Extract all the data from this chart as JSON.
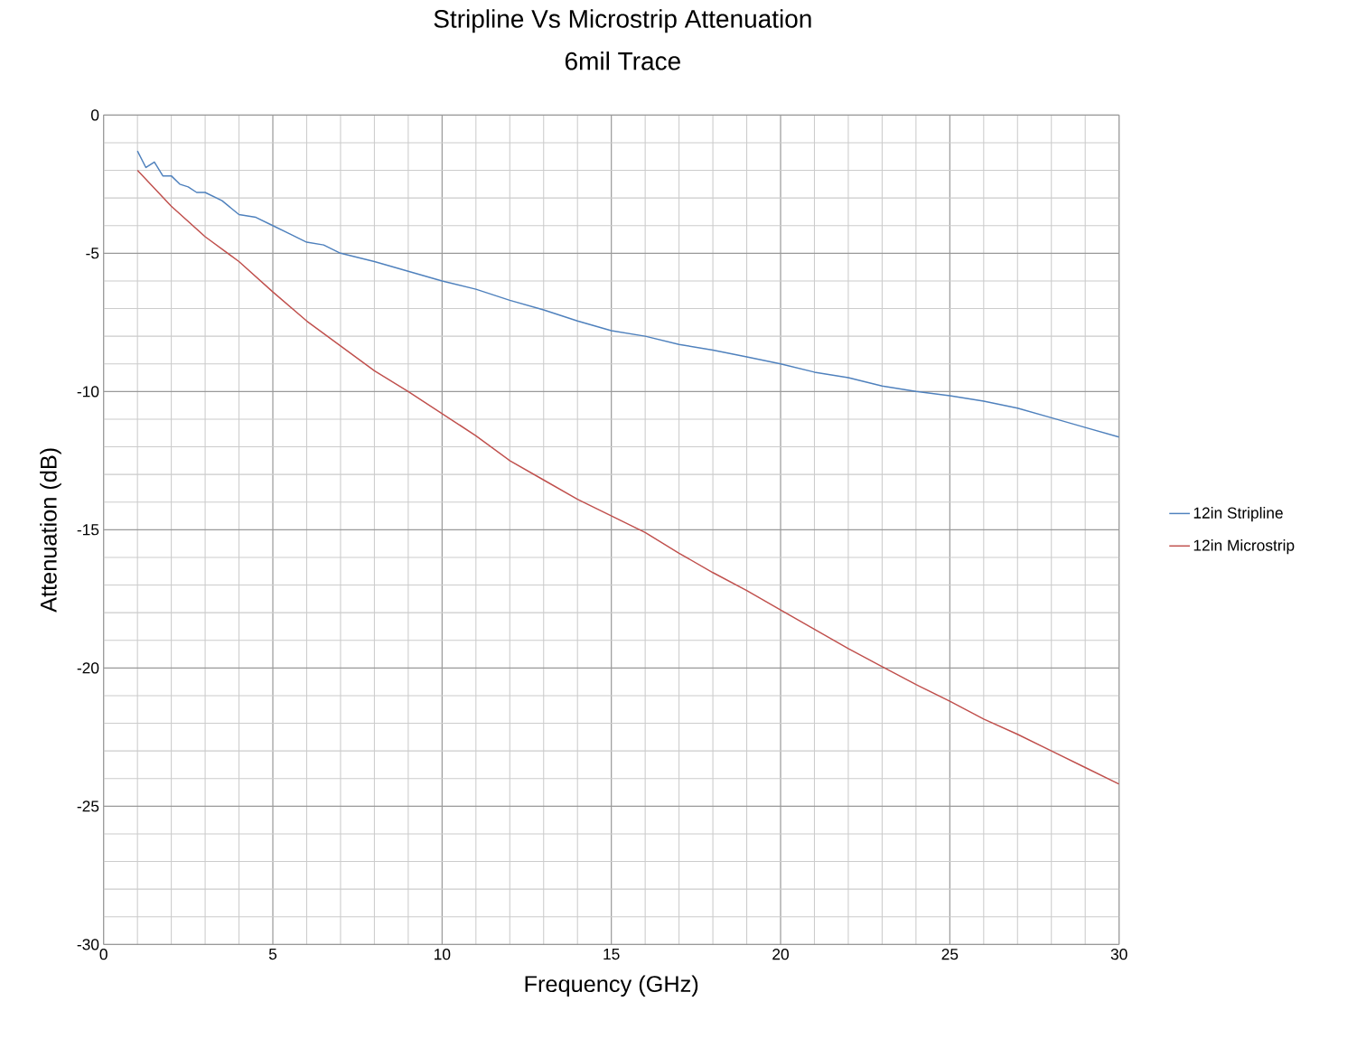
{
  "chart_data": {
    "type": "line",
    "title": "Stripline Vs Microstrip Attenuation",
    "subtitle": "6mil Trace",
    "xlabel": "Frequency (GHz)",
    "ylabel": "Attenuation (dB)",
    "xlim": [
      0,
      30
    ],
    "ylim": [
      -30,
      0
    ],
    "xticks": [
      0,
      5,
      10,
      15,
      20,
      25,
      30
    ],
    "yticks": [
      -30,
      -25,
      -20,
      -15,
      -10,
      -5,
      0
    ],
    "grid": true,
    "legend": "right",
    "marker": "none",
    "line_style": "solid",
    "series": [
      {
        "name": "12in Stripline",
        "color": "#4f81bd",
        "x": [
          1,
          1.25,
          1.5,
          1.75,
          2,
          2.25,
          2.5,
          2.75,
          3,
          3.5,
          4,
          4.5,
          5,
          5.5,
          6,
          6.5,
          7,
          8,
          9,
          10,
          11,
          12,
          13,
          14,
          15,
          16,
          17,
          18,
          19,
          20,
          21,
          22,
          23,
          24,
          25,
          26,
          27,
          28,
          29,
          30
        ],
        "values": [
          -1.3,
          -1.9,
          -1.7,
          -2.2,
          -2.2,
          -2.5,
          -2.6,
          -2.8,
          -2.8,
          -3.1,
          -3.6,
          -3.7,
          -4.0,
          -4.3,
          -4.6,
          -4.7,
          -5.0,
          -5.3,
          -5.65,
          -6.0,
          -6.3,
          -6.7,
          -7.05,
          -7.45,
          -7.8,
          -8.0,
          -8.3,
          -8.5,
          -8.75,
          -9.0,
          -9.3,
          -9.5,
          -9.8,
          -10.0,
          -10.15,
          -10.35,
          -10.6,
          -10.95,
          -11.3,
          -11.65
        ]
      },
      {
        "name": "12in Microstrip",
        "color": "#c0504d",
        "x": [
          1,
          2,
          3,
          4,
          5,
          6,
          7,
          8,
          9,
          10,
          11,
          12,
          13,
          14,
          15,
          16,
          17,
          18,
          19,
          20,
          21,
          22,
          23,
          24,
          25,
          26,
          27,
          28,
          29,
          30
        ],
        "values": [
          -2.0,
          -3.3,
          -4.4,
          -5.3,
          -6.4,
          -7.45,
          -8.35,
          -9.25,
          -10.0,
          -10.8,
          -11.6,
          -12.5,
          -13.2,
          -13.9,
          -14.5,
          -15.1,
          -15.85,
          -16.55,
          -17.2,
          -17.9,
          -18.6,
          -19.3,
          -19.95,
          -20.6,
          -21.2,
          -21.85,
          -22.4,
          -23.0,
          -23.6,
          -24.2
        ]
      }
    ]
  }
}
